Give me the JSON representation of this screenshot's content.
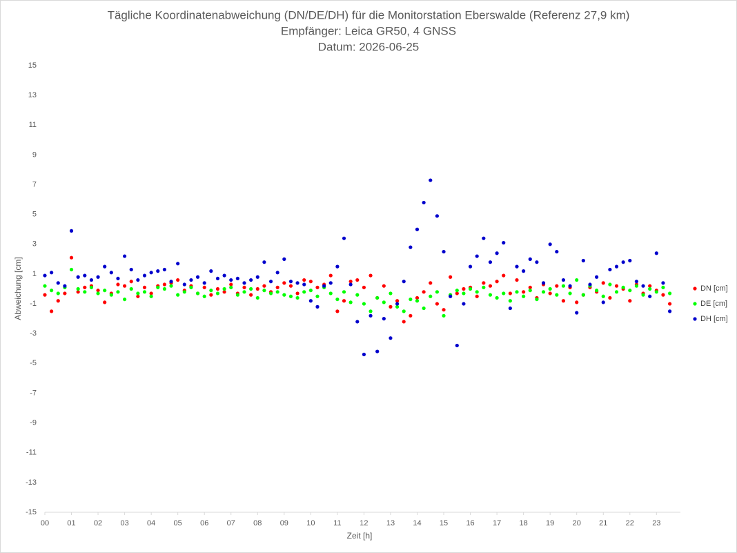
{
  "chart_data": {
    "type": "scatter",
    "title": "Tägliche Koordinatenabweichung (DN/DE/DH) für die Monitorstation Eberswalde (Referenz 27,9 km)",
    "subtitle": [
      "Empfänger: Leica GR50, 4 GNSS",
      "Datum: 2026-06-25"
    ],
    "xlabel": "Zeit [h]",
    "ylabel": "Abweichung [cm]",
    "xlim": [
      0,
      23.9
    ],
    "ylim": [
      -15,
      15
    ],
    "xticks": [
      {
        "value": 0,
        "label": "00"
      },
      {
        "value": 1,
        "label": "01"
      },
      {
        "value": 2,
        "label": "02"
      },
      {
        "value": 3,
        "label": "03"
      },
      {
        "value": 4,
        "label": "04"
      },
      {
        "value": 5,
        "label": "05"
      },
      {
        "value": 6,
        "label": "06"
      },
      {
        "value": 7,
        "label": "07"
      },
      {
        "value": 8,
        "label": "08"
      },
      {
        "value": 9,
        "label": "09"
      },
      10,
      11,
      12,
      13,
      14,
      15,
      16,
      17,
      18,
      19,
      20,
      21,
      22,
      23
    ],
    "yticks": [
      15,
      13,
      11,
      9,
      7,
      5,
      3,
      1,
      -1,
      -3,
      -5,
      -7,
      -9,
      -11,
      -13,
      -15
    ],
    "grid": false,
    "legend": "right",
    "x": [
      0,
      0.25,
      0.5,
      0.75,
      1,
      1.25,
      1.5,
      1.75,
      2,
      2.25,
      2.5,
      2.75,
      3,
      3.25,
      3.5,
      3.75,
      4,
      4.25,
      4.5,
      4.75,
      5,
      5.25,
      5.5,
      5.75,
      6,
      6.25,
      6.5,
      6.75,
      7,
      7.25,
      7.5,
      7.75,
      8,
      8.25,
      8.5,
      8.75,
      9,
      9.25,
      9.5,
      9.75,
      10,
      10.25,
      10.5,
      10.75,
      11,
      11.25,
      11.5,
      11.75,
      12,
      12.25,
      12.5,
      12.75,
      13,
      13.25,
      13.5,
      13.75,
      14,
      14.25,
      14.5,
      14.75,
      15,
      15.25,
      15.5,
      15.75,
      16,
      16.25,
      16.5,
      16.75,
      17,
      17.25,
      17.5,
      17.75,
      18,
      18.25,
      18.5,
      18.75,
      19,
      19.25,
      19.5,
      19.75,
      20,
      20.25,
      20.5,
      20.75,
      21,
      21.25,
      21.5,
      21.75,
      22,
      22.25,
      22.5,
      22.75,
      23,
      23.25,
      23.5
    ],
    "series": [
      {
        "name": "DN [cm]",
        "color": "#ff0000",
        "values": [
          -0.4,
          -1.5,
          -0.8,
          -0.3,
          2.1,
          -0.2,
          0.1,
          0.2,
          -0.1,
          -0.9,
          -0.3,
          0.3,
          0.2,
          0.5,
          -0.5,
          0.1,
          -0.3,
          0.2,
          0.3,
          0.4,
          0.6,
          -0.1,
          0.2,
          -0.3,
          0.1,
          -0.4,
          0.0,
          -0.2,
          0.3,
          -0.3,
          0.1,
          -0.4,
          0.0,
          0.2,
          -0.2,
          0.1,
          0.4,
          0.2,
          -0.3,
          0.6,
          0.5,
          0.1,
          0.3,
          0.9,
          -1.5,
          -0.8,
          0.5,
          0.6,
          0.1,
          0.9,
          -0.6,
          0.2,
          -1.2,
          -0.8,
          -2.2,
          -1.8,
          -0.6,
          -0.2,
          0.4,
          -1.0,
          -1.4,
          0.8,
          -0.3,
          0.0,
          0.1,
          -0.5,
          0.4,
          0.2,
          0.5,
          0.9,
          -0.3,
          0.6,
          -0.2,
          0.1,
          -0.6,
          0.3,
          -0.3,
          0.2,
          -0.8,
          0.1,
          -0.9,
          -0.4,
          0.1,
          -0.2,
          0.4,
          -0.6,
          0.2,
          0.0,
          -0.8,
          0.3,
          -0.3,
          0.2,
          -0.1,
          -0.4,
          -1.0
        ]
      },
      {
        "name": "DE [cm]",
        "color": "#00ff00",
        "values": [
          0.2,
          -0.1,
          -0.3,
          0.1,
          1.3,
          0.0,
          -0.2,
          0.1,
          -0.3,
          -0.1,
          -0.4,
          -0.2,
          -0.7,
          0.0,
          -0.3,
          -0.2,
          -0.5,
          0.1,
          0.0,
          0.2,
          -0.4,
          -0.2,
          0.1,
          -0.3,
          -0.5,
          -0.1,
          -0.3,
          0.0,
          0.1,
          -0.4,
          -0.2,
          0.0,
          -0.6,
          -0.1,
          -0.3,
          -0.2,
          -0.4,
          -0.5,
          -0.6,
          -0.2,
          -0.1,
          -0.5,
          0.1,
          -0.3,
          -0.7,
          -0.2,
          -0.9,
          -0.4,
          -1.0,
          -1.5,
          -0.6,
          -0.9,
          -0.3,
          -1.2,
          -1.5,
          -0.7,
          -0.8,
          -1.3,
          -0.5,
          -0.2,
          -1.8,
          -0.4,
          -0.1,
          -0.3,
          0.0,
          -0.2,
          0.1,
          -0.4,
          -0.6,
          -0.3,
          -0.8,
          -0.2,
          -0.5,
          -0.1,
          -0.7,
          -0.2,
          0.0,
          -0.4,
          0.2,
          -0.3,
          0.6,
          -0.4,
          0.2,
          -0.1,
          -0.5,
          0.3,
          -0.2,
          0.1,
          -0.1,
          0.2,
          -0.4,
          0.0,
          -0.2,
          0.1,
          -0.3
        ]
      },
      {
        "name": "DH [cm]",
        "color": "#0000cc",
        "values": [
          0.9,
          1.1,
          0.4,
          0.2,
          3.9,
          0.8,
          0.9,
          0.6,
          0.8,
          1.5,
          1.1,
          0.7,
          2.2,
          1.3,
          0.6,
          0.9,
          1.1,
          1.2,
          1.3,
          0.5,
          1.7,
          0.3,
          0.6,
          0.8,
          0.4,
          1.2,
          0.7,
          0.9,
          0.6,
          0.7,
          0.4,
          0.6,
          0.8,
          1.8,
          0.5,
          1.1,
          2.0,
          0.5,
          0.4,
          0.3,
          -0.8,
          -1.2,
          0.2,
          0.4,
          1.5,
          3.4,
          0.3,
          -2.2,
          -4.4,
          -1.8,
          -4.2,
          -2.0,
          -3.3,
          -1.0,
          0.5,
          2.8,
          4.0,
          5.8,
          7.3,
          4.9,
          2.5,
          -0.5,
          -3.8,
          -1.0,
          1.5,
          2.2,
          3.4,
          1.8,
          2.4,
          3.1,
          -1.3,
          1.5,
          1.2,
          2.0,
          1.8,
          0.4,
          3.0,
          2.5,
          0.6,
          0.2,
          -1.6,
          1.9,
          0.3,
          0.8,
          -0.9,
          1.3,
          1.5,
          1.8,
          1.9,
          0.5,
          0.2,
          -0.5,
          2.4,
          0.4,
          -1.5
        ]
      }
    ]
  }
}
